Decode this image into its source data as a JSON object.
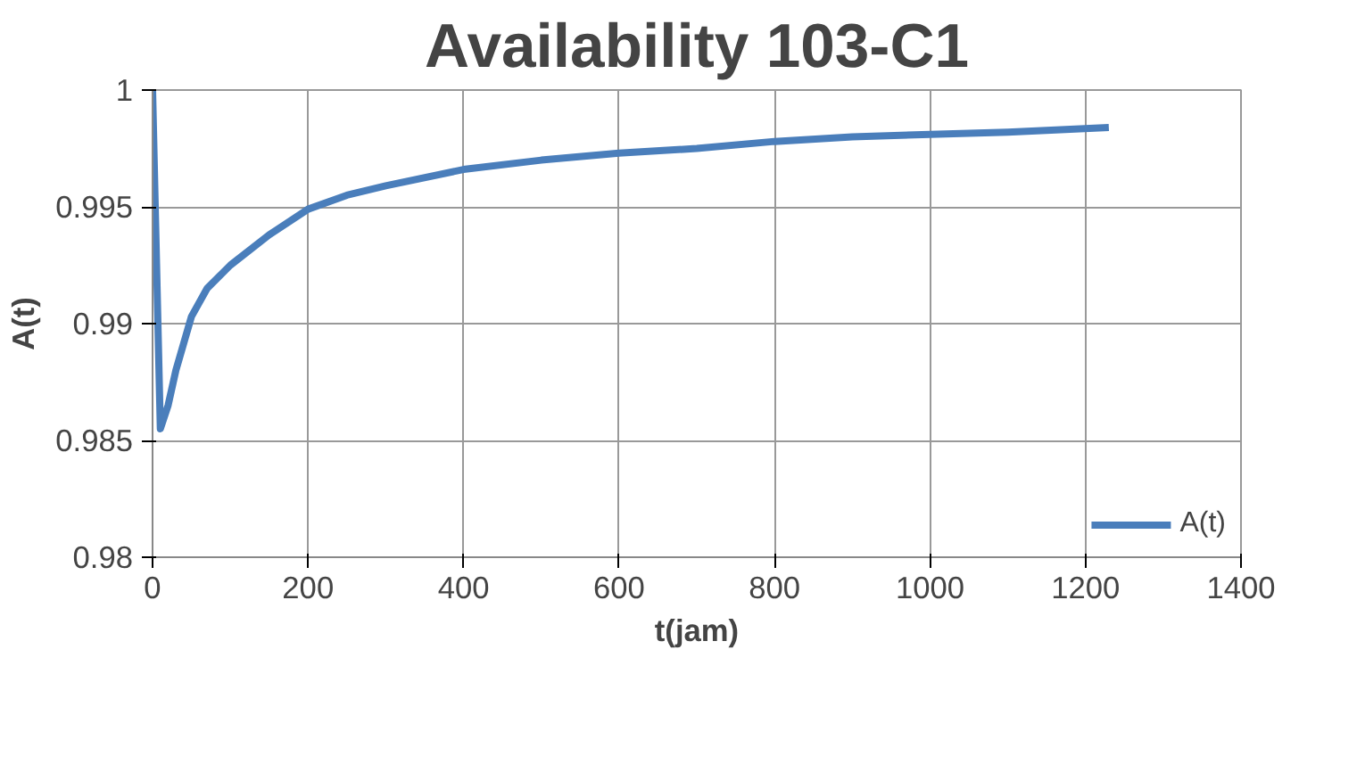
{
  "chart_data": {
    "type": "line",
    "title": "Availability 103-C1",
    "xlabel": "t(jam)",
    "ylabel": "A(t)",
    "x": [
      0,
      10,
      20,
      30,
      50,
      70,
      100,
      150,
      200,
      250,
      300,
      400,
      500,
      600,
      700,
      800,
      900,
      1000,
      1100,
      1230
    ],
    "series": [
      {
        "name": "A(t)",
        "color": "#4a7ebb",
        "values": [
          1,
          0.9855,
          0.9865,
          0.988,
          0.9903,
          0.9915,
          0.9925,
          0.9938,
          0.9949,
          0.9955,
          0.9959,
          0.9966,
          0.997,
          0.9973,
          0.9975,
          0.9978,
          0.998,
          0.9981,
          0.9982,
          0.9984
        ]
      }
    ],
    "xlim": [
      0,
      1400
    ],
    "xticks": [
      0,
      200,
      400,
      600,
      800,
      1000,
      1200,
      1400
    ],
    "ylim": [
      0.98,
      1
    ],
    "yticks": [
      0.98,
      0.985,
      0.99,
      0.995,
      1
    ],
    "grid": true,
    "legend": "bottom right",
    "marker": "none",
    "line_style": "solid"
  }
}
